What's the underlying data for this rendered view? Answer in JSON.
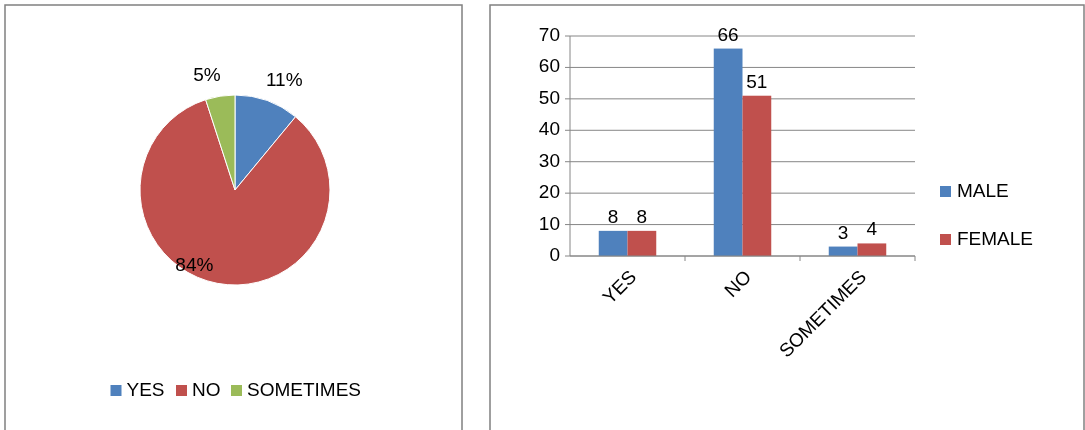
{
  "chart_data": [
    {
      "type": "pie",
      "categories": [
        "YES",
        "NO",
        "SOMETIMES"
      ],
      "values": [
        11,
        84,
        5
      ],
      "colors": [
        "#4f81bd",
        "#c0504d",
        "#9bbb59"
      ],
      "legend": "bottom",
      "value_labels": [
        "11%",
        "84%",
        "5%"
      ]
    },
    {
      "type": "bar",
      "categories": [
        "YES",
        "NO",
        "SOMETIMES"
      ],
      "series": [
        {
          "name": "MALE",
          "color": "#4f81bd",
          "values": [
            8,
            66,
            3
          ]
        },
        {
          "name": "FEMALE",
          "color": "#c0504d",
          "values": [
            8,
            51,
            4
          ]
        }
      ],
      "ylim": [
        0,
        70
      ],
      "yticks": [
        0,
        10,
        20,
        30,
        40,
        50,
        60,
        70
      ],
      "grid": "y",
      "legend": "right",
      "data_labels": true
    }
  ]
}
